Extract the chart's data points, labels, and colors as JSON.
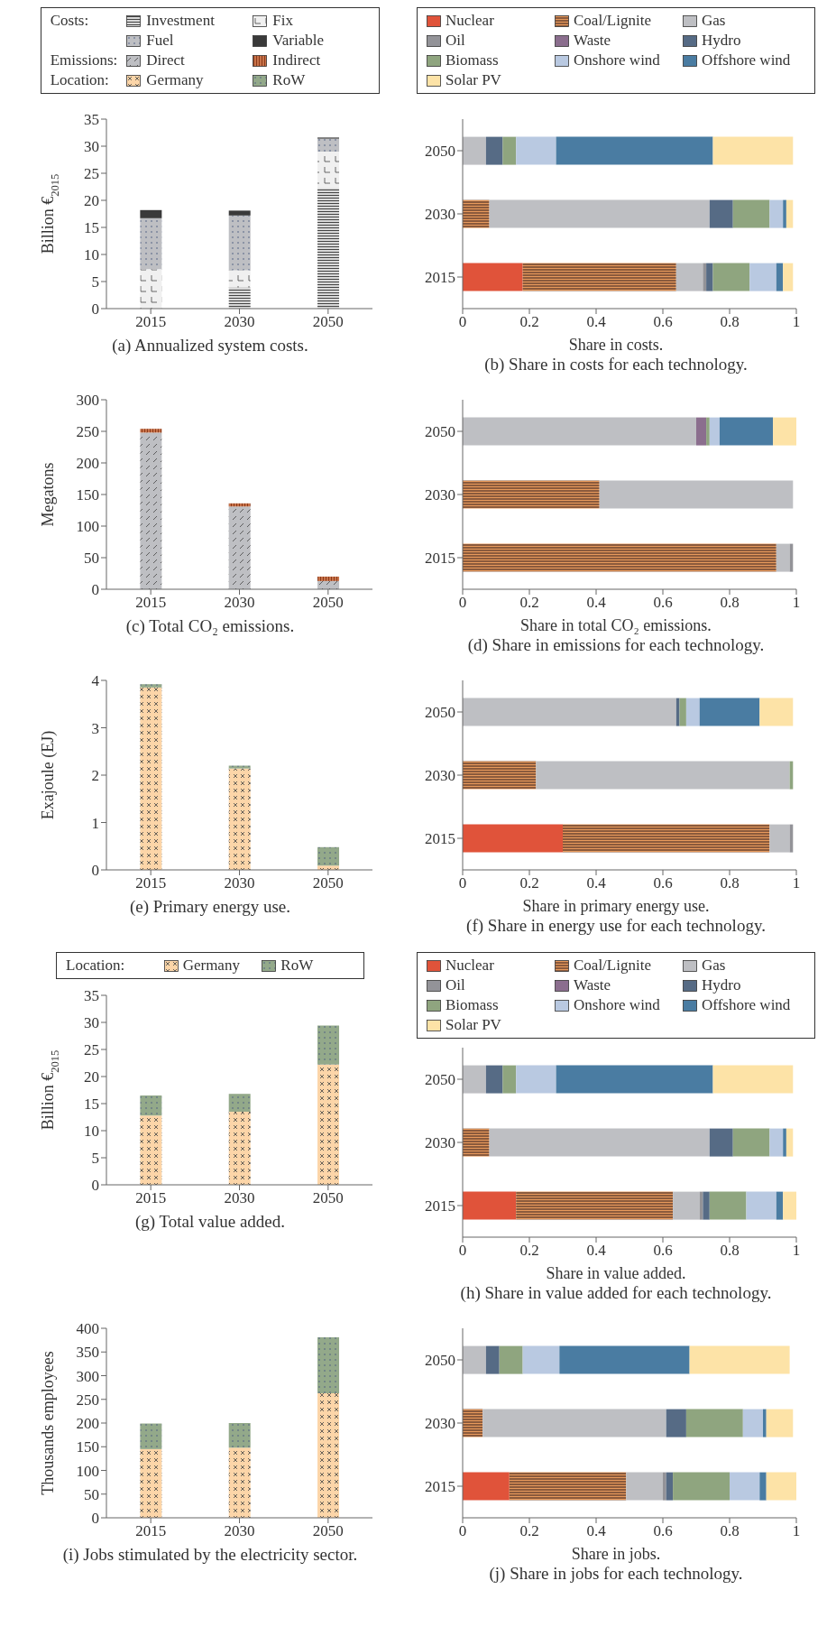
{
  "chart_data": [
    {
      "type": "bar",
      "title": "(a) Annualized system costs.",
      "ylabel": "Billion €$_{2015}$",
      "legend": "top",
      "legend_title": "Costs:",
      "stacked": true,
      "categories": [
        "2015",
        "2030",
        "2050"
      ],
      "ylim": [
        0,
        35
      ],
      "yticks": [
        0,
        5,
        10,
        15,
        20,
        25,
        30,
        35
      ],
      "series": [
        {
          "name": "Investment",
          "color": "#d9d9d9",
          "values": [
            0,
            3.9,
            22.3
          ]
        },
        {
          "name": "Fix",
          "color": "#f0f0f0",
          "values": [
            7.3,
            3.2,
            6.7
          ]
        },
        {
          "name": "Fuel",
          "color": "#bebfc3",
          "values": [
            9.4,
            10.1,
            2.4
          ]
        },
        {
          "name": "Variable",
          "color": "#3a3a3a",
          "values": [
            1.5,
            0.9,
            0.2
          ]
        }
      ]
    },
    {
      "type": "bar",
      "orientation": "horizontal",
      "stacked": true,
      "title": "(b) Share in costs for each technology.",
      "xlabel": "Share in costs.",
      "legend": "top",
      "categories": [
        "2050",
        "2030",
        "2015"
      ],
      "xlim": [
        0,
        1
      ],
      "xticks": [
        0,
        0.2,
        0.4,
        0.6,
        0.8,
        1
      ],
      "series": [
        {
          "name": "Nuclear",
          "color": "#e0533a",
          "values": [
            0,
            0,
            0.18
          ]
        },
        {
          "name": "Coal/Lignite",
          "color": "#8b5a3c",
          "values": [
            0,
            0.08,
            0.46
          ]
        },
        {
          "name": "Gas",
          "color": "#bebfc3",
          "values": [
            0.07,
            0.66,
            0.08
          ]
        },
        {
          "name": "Oil",
          "color": "#939398",
          "values": [
            0,
            0,
            0.01
          ]
        },
        {
          "name": "Waste",
          "color": "#8b6e8e",
          "values": [
            0,
            0,
            0
          ]
        },
        {
          "name": "Hydro",
          "color": "#566b85",
          "values": [
            0.05,
            0.07,
            0.02
          ]
        },
        {
          "name": "Biomass",
          "color": "#8fa57f",
          "values": [
            0.04,
            0.11,
            0.11
          ]
        },
        {
          "name": "Onshore wind",
          "color": "#b9c9e1",
          "values": [
            0.12,
            0.04,
            0.08
          ]
        },
        {
          "name": "Offshore wind",
          "color": "#4a7ca2",
          "values": [
            0.47,
            0.01,
            0.02
          ]
        },
        {
          "name": "Solar PV",
          "color": "#fde3a7",
          "values": [
            0.24,
            0.02,
            0.03
          ]
        }
      ]
    },
    {
      "type": "bar",
      "title": "(c) Total CO₂ emissions.",
      "ylabel": "Megatons",
      "legend": "top",
      "legend_title": "Emissions:",
      "stacked": true,
      "categories": [
        "2015",
        "2030",
        "2050"
      ],
      "ylim": [
        0,
        300
      ],
      "yticks": [
        0,
        50,
        100,
        150,
        200,
        250,
        300
      ],
      "series": [
        {
          "name": "Direct",
          "color": "#bebfc3",
          "values": [
            248,
            131,
            13
          ]
        },
        {
          "name": "Indirect",
          "color": "#c8734a",
          "values": [
            6,
            5,
            7
          ]
        }
      ]
    },
    {
      "type": "bar",
      "orientation": "horizontal",
      "stacked": true,
      "title": "(d) Share in emissions for each technology.",
      "xlabel": "Share in total CO₂ emissions.",
      "categories": [
        "2050",
        "2030",
        "2015"
      ],
      "xlim": [
        0,
        1
      ],
      "xticks": [
        0,
        0.2,
        0.4,
        0.6,
        0.8,
        1
      ],
      "series": [
        {
          "color": "#e0533a",
          "values": [
            0,
            0,
            0
          ]
        },
        {
          "color": "#8b5a3c",
          "values": [
            0,
            0.41,
            0.94
          ]
        },
        {
          "color": "#bebfc3",
          "values": [
            0.7,
            0.58,
            0.04
          ]
        },
        {
          "color": "#939398",
          "values": [
            0,
            0,
            0.01
          ]
        },
        {
          "color": "#8b6e8e",
          "values": [
            0.03,
            0,
            0
          ]
        },
        {
          "color": "#566b85",
          "values": [
            0,
            0,
            0
          ]
        },
        {
          "color": "#8fa57f",
          "values": [
            0.01,
            0,
            0
          ]
        },
        {
          "color": "#b9c9e1",
          "values": [
            0.03,
            0,
            0
          ]
        },
        {
          "color": "#4a7ca2",
          "values": [
            0.16,
            0,
            0
          ]
        },
        {
          "color": "#fde3a7",
          "values": [
            0.07,
            0,
            0
          ]
        }
      ]
    },
    {
      "type": "bar",
      "title": "(e) Primary energy use.",
      "ylabel": "Exajoule (EJ)",
      "legend": "top",
      "legend_title": "Location:",
      "stacked": true,
      "categories": [
        "2015",
        "2030",
        "2050"
      ],
      "ylim": [
        0,
        4
      ],
      "yticks": [
        0,
        1,
        2,
        3,
        4
      ],
      "series": [
        {
          "name": "Germany",
          "color": "#fcd5a8",
          "values": [
            3.85,
            2.14,
            0.09
          ]
        },
        {
          "name": "RoW",
          "color": "#93a98a",
          "values": [
            0.07,
            0.06,
            0.39
          ]
        }
      ]
    },
    {
      "type": "bar",
      "orientation": "horizontal",
      "stacked": true,
      "title": "(f) Share in energy use for each technology.",
      "xlabel": "Share in primary energy use.",
      "categories": [
        "2050",
        "2030",
        "2015"
      ],
      "xlim": [
        0,
        1
      ],
      "xticks": [
        0,
        0.2,
        0.4,
        0.6,
        0.8,
        1
      ],
      "series": [
        {
          "color": "#e0533a",
          "values": [
            0,
            0,
            0.3
          ]
        },
        {
          "color": "#8b5a3c",
          "values": [
            0,
            0.22,
            0.62
          ]
        },
        {
          "color": "#bebfc3",
          "values": [
            0.64,
            0.76,
            0.06
          ]
        },
        {
          "color": "#939398",
          "values": [
            0,
            0,
            0.01
          ]
        },
        {
          "color": "#8b6e8e",
          "values": [
            0,
            0,
            0
          ]
        },
        {
          "color": "#566b85",
          "values": [
            0.01,
            0,
            0
          ]
        },
        {
          "color": "#8fa57f",
          "values": [
            0.02,
            0.01,
            0
          ]
        },
        {
          "color": "#b9c9e1",
          "values": [
            0.04,
            0,
            0
          ]
        },
        {
          "color": "#4a7ca2",
          "values": [
            0.18,
            0,
            0
          ]
        },
        {
          "color": "#fde3a7",
          "values": [
            0.1,
            0,
            0
          ]
        }
      ]
    },
    {
      "type": "bar",
      "title": "(g) Total value added.",
      "ylabel": "Billion €$_{2015}$",
      "legend": "top",
      "legend_title": "Location:",
      "stacked": true,
      "categories": [
        "2015",
        "2030",
        "2050"
      ],
      "ylim": [
        0,
        35
      ],
      "yticks": [
        0,
        5,
        10,
        15,
        20,
        25,
        30,
        35
      ],
      "series": [
        {
          "name": "Germany",
          "color": "#fcd5a8",
          "values": [
            12.8,
            13.5,
            22.2
          ]
        },
        {
          "name": "RoW",
          "color": "#93a98a",
          "values": [
            3.7,
            3.3,
            7.2
          ]
        }
      ]
    },
    {
      "type": "bar",
      "orientation": "horizontal",
      "stacked": true,
      "title": "(h) Share in value added for each technology.",
      "xlabel": "Share in value added.",
      "legend": "top",
      "categories": [
        "2050",
        "2030",
        "2015"
      ],
      "xlim": [
        0,
        1
      ],
      "xticks": [
        0,
        0.2,
        0.4,
        0.6,
        0.8,
        1
      ],
      "series": [
        {
          "name": "Nuclear",
          "color": "#e0533a",
          "values": [
            0,
            0,
            0.16
          ]
        },
        {
          "name": "Coal/Lignite",
          "color": "#8b5a3c",
          "values": [
            0,
            0.08,
            0.47
          ]
        },
        {
          "name": "Gas",
          "color": "#bebfc3",
          "values": [
            0.07,
            0.66,
            0.08
          ]
        },
        {
          "name": "Oil",
          "color": "#939398",
          "values": [
            0,
            0,
            0.01
          ]
        },
        {
          "name": "Waste",
          "color": "#8b6e8e",
          "values": [
            0,
            0,
            0
          ]
        },
        {
          "name": "Hydro",
          "color": "#566b85",
          "values": [
            0.05,
            0.07,
            0.02
          ]
        },
        {
          "name": "Biomass",
          "color": "#8fa57f",
          "values": [
            0.04,
            0.11,
            0.11
          ]
        },
        {
          "name": "Onshore wind",
          "color": "#b9c9e1",
          "values": [
            0.12,
            0.04,
            0.09
          ]
        },
        {
          "name": "Offshore wind",
          "color": "#4a7ca2",
          "values": [
            0.47,
            0.01,
            0.02
          ]
        },
        {
          "name": "Solar PV",
          "color": "#fde3a7",
          "values": [
            0.24,
            0.02,
            0.04
          ]
        }
      ]
    },
    {
      "type": "bar",
      "title": "(i) Jobs stimulated by the electricity sector.",
      "ylabel": "Thousands employees",
      "stacked": true,
      "categories": [
        "2015",
        "2030",
        "2050"
      ],
      "ylim": [
        0,
        400
      ],
      "yticks": [
        0,
        50,
        100,
        150,
        200,
        250,
        300,
        350,
        400
      ],
      "series": [
        {
          "color": "#fcd5a8",
          "values": [
            145,
            148,
            263
          ]
        },
        {
          "color": "#93a98a",
          "values": [
            54,
            52,
            118
          ]
        }
      ]
    },
    {
      "type": "bar",
      "orientation": "horizontal",
      "stacked": true,
      "title": "(j) Share in jobs for each technology.",
      "xlabel": "Share in jobs.",
      "categories": [
        "2050",
        "2030",
        "2015"
      ],
      "xlim": [
        0,
        1
      ],
      "xticks": [
        0,
        0.2,
        0.4,
        0.6,
        0.8,
        1
      ],
      "series": [
        {
          "color": "#e0533a",
          "values": [
            0,
            0,
            0.14
          ]
        },
        {
          "color": "#8b5a3c",
          "values": [
            0,
            0.06,
            0.35
          ]
        },
        {
          "color": "#bebfc3",
          "values": [
            0.07,
            0.55,
            0.11
          ]
        },
        {
          "color": "#939398",
          "values": [
            0,
            0,
            0.01
          ]
        },
        {
          "color": "#8b6e8e",
          "values": [
            0,
            0,
            0
          ]
        },
        {
          "color": "#566b85",
          "values": [
            0.04,
            0.06,
            0.02
          ]
        },
        {
          "color": "#8fa57f",
          "values": [
            0.07,
            0.17,
            0.17
          ]
        },
        {
          "color": "#b9c9e1",
          "values": [
            0.11,
            0.06,
            0.09
          ]
        },
        {
          "color": "#4a7ca2",
          "values": [
            0.39,
            0.01,
            0.02
          ]
        },
        {
          "color": "#fde3a7",
          "values": [
            0.3,
            0.08,
            0.09
          ]
        }
      ]
    }
  ]
}
